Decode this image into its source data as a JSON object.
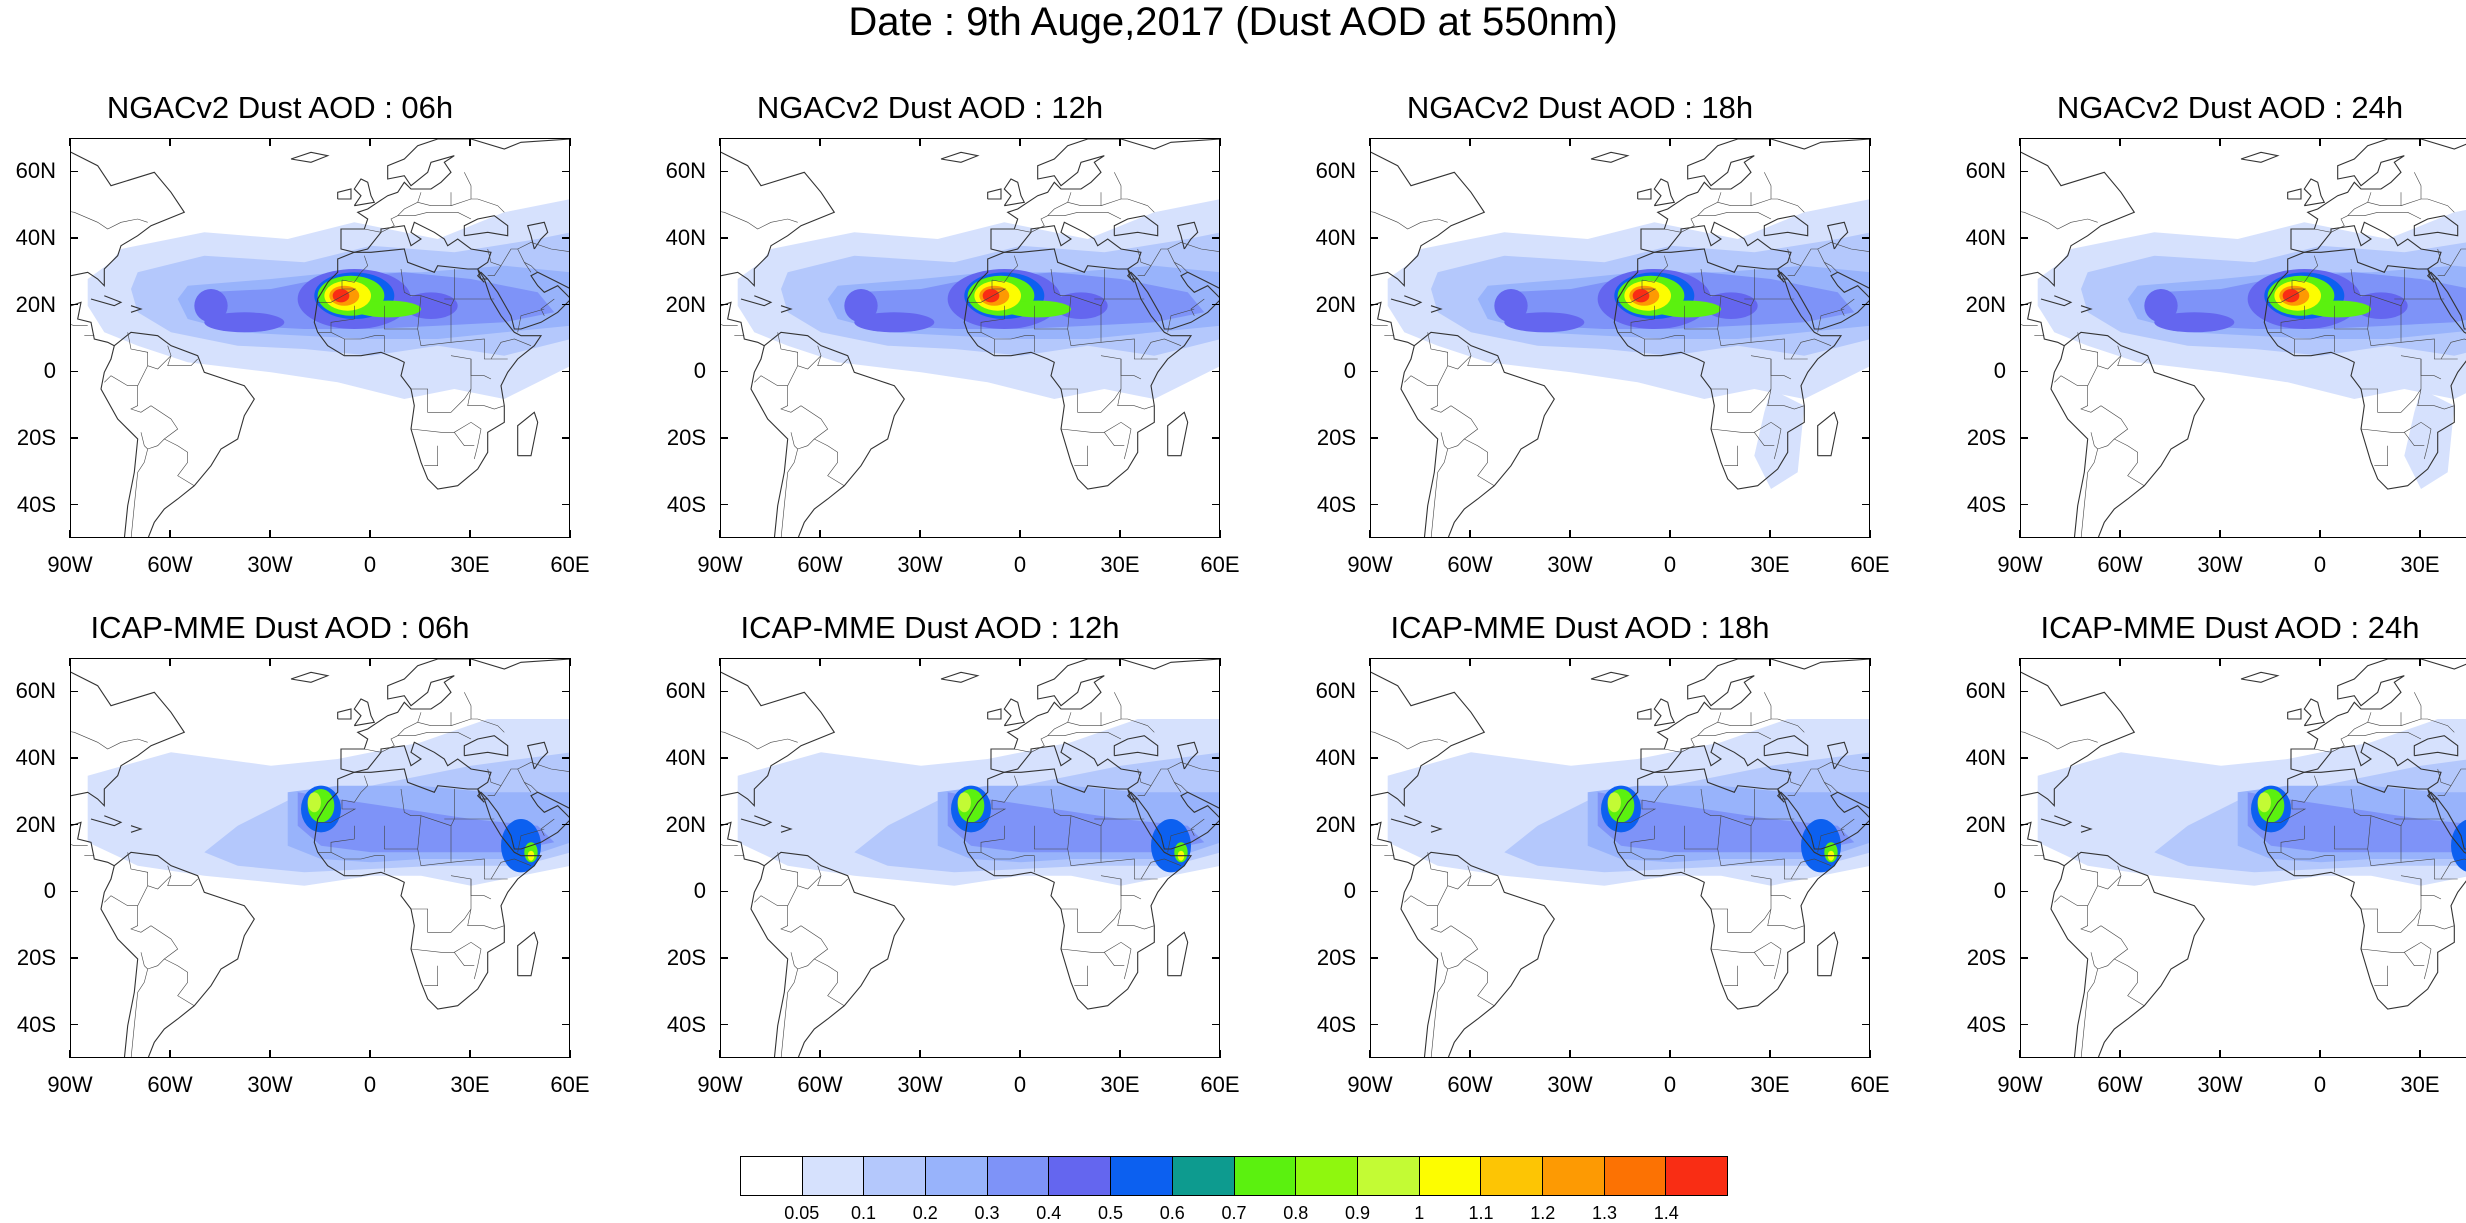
{
  "title": "Date : 9th Auge,2017 (Dust AOD at 550nm)",
  "map": {
    "lon_range": [
      -90,
      60
    ],
    "lat_range": [
      -50,
      70
    ],
    "y_tick_labels": [
      {
        "lat": 60,
        "label": "60N"
      },
      {
        "lat": 40,
        "label": "40N"
      },
      {
        "lat": 20,
        "label": "20N"
      },
      {
        "lat": 0,
        "label": "0"
      },
      {
        "lat": -20,
        "label": "20S"
      },
      {
        "lat": -40,
        "label": "40S"
      }
    ],
    "x_tick_labels": [
      {
        "lon": -90,
        "label": "90W"
      },
      {
        "lon": -60,
        "label": "60W"
      },
      {
        "lon": -30,
        "label": "30W"
      },
      {
        "lon": 0,
        "label": "0"
      },
      {
        "lon": 30,
        "label": "30E"
      },
      {
        "lon": 60,
        "label": "60E"
      }
    ]
  },
  "panels": [
    {
      "title": "NGACv2 Dust AOD : 06h",
      "model": "NGACv2",
      "hour": 6,
      "peak_aod": 1.4
    },
    {
      "title": "NGACv2 Dust AOD : 12h",
      "model": "NGACv2",
      "hour": 12,
      "peak_aod": 1.4
    },
    {
      "title": "NGACv2 Dust AOD : 18h",
      "model": "NGACv2",
      "hour": 18,
      "peak_aod": 1.4
    },
    {
      "title": "NGACv2 Dust AOD : 24h",
      "model": "NGACv2",
      "hour": 24,
      "peak_aod": 1.3
    },
    {
      "title": "ICAP-MME Dust AOD : 06h",
      "model": "ICAP-MME",
      "hour": 6,
      "peak_aod": 1.0
    },
    {
      "title": "ICAP-MME Dust AOD : 12h",
      "model": "ICAP-MME",
      "hour": 12,
      "peak_aod": 1.0
    },
    {
      "title": "ICAP-MME Dust AOD : 18h",
      "model": "ICAP-MME",
      "hour": 18,
      "peak_aod": 1.1
    },
    {
      "title": "ICAP-MME Dust AOD : 24h",
      "model": "ICAP-MME",
      "hour": 24,
      "peak_aod": 1.1
    }
  ],
  "colorbar": {
    "colors": [
      "#ffffff",
      "#d6e1fd",
      "#b4c8fc",
      "#98b3fb",
      "#7e93f8",
      "#6466ef",
      "#0c60f0",
      "#0d9b8f",
      "#5bf10f",
      "#8ff70e",
      "#c3fb34",
      "#fdfd00",
      "#fdc504",
      "#fd9a03",
      "#fc7203",
      "#f92d14"
    ],
    "labels": [
      "0.05",
      "0.1",
      "0.2",
      "0.3",
      "0.4",
      "0.5",
      "0.6",
      "0.7",
      "0.8",
      "0.9",
      "1",
      "1.1",
      "1.2",
      "1.3",
      "1.4"
    ]
  }
}
